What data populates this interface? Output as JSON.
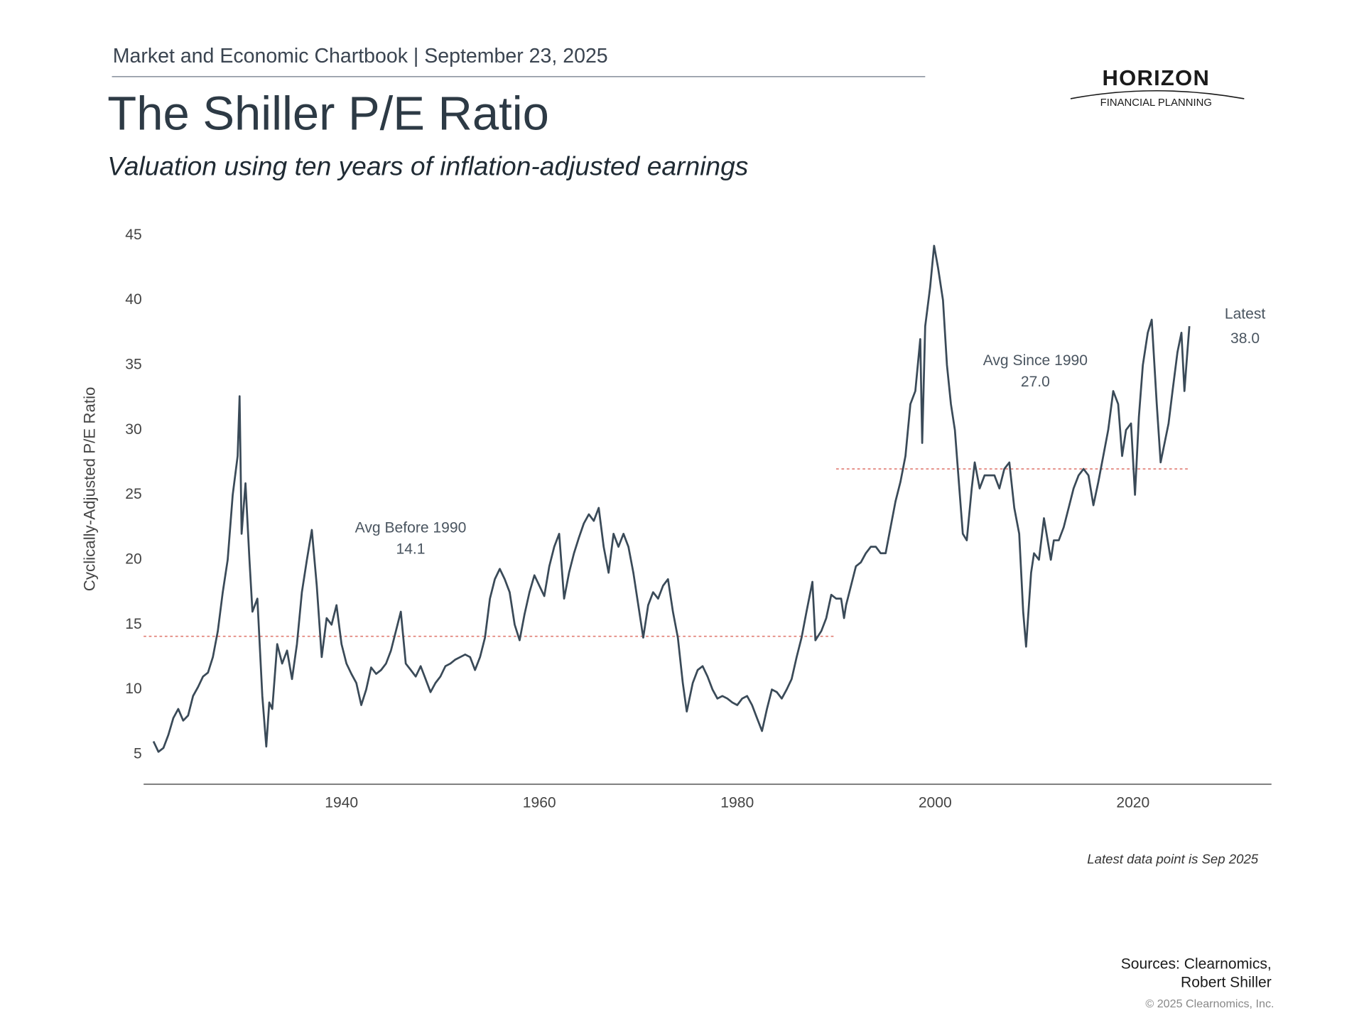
{
  "header": "Market and Economic Chartbook | September 23, 2025",
  "logo": {
    "name": "HORIZON",
    "tagline": "FINANCIAL PLANNING"
  },
  "chart_data": {
    "type": "line",
    "title": "The Shiller P/E Ratio",
    "subtitle": "Valuation using ten years of inflation-adjusted earnings",
    "y_label": "Cyclically-Adjusted P/E Ratio",
    "xlim": [
      1920,
      2034
    ],
    "ylim": [
      2.7,
      45
    ],
    "xticks": [
      1940,
      1960,
      1980,
      2000,
      2020
    ],
    "yticks": [
      5,
      10,
      15,
      20,
      25,
      30,
      35,
      40,
      45
    ],
    "grid": false,
    "series": [
      {
        "name": "Shiller P/E",
        "color": "#3a4a58",
        "x": [
          1921.0,
          1921.5,
          1922,
          1922.5,
          1923,
          1923.5,
          1924,
          1924.5,
          1925,
          1925.5,
          1926,
          1926.5,
          1927,
          1927.5,
          1928,
          1928.5,
          1929,
          1929.5,
          1929.7,
          1929.9,
          1930.3,
          1930.7,
          1931,
          1931.5,
          1932,
          1932.4,
          1932.7,
          1933,
          1933.5,
          1934,
          1934.5,
          1935,
          1935.5,
          1936,
          1936.5,
          1937,
          1937.5,
          1938,
          1938.5,
          1939,
          1939.5,
          1940,
          1940.5,
          1941,
          1941.5,
          1942,
          1942.5,
          1943,
          1943.5,
          1944,
          1944.5,
          1945,
          1945.5,
          1946,
          1946.5,
          1947,
          1947.5,
          1948,
          1948.5,
          1949,
          1949.5,
          1950,
          1950.5,
          1951,
          1951.5,
          1952,
          1952.5,
          1953,
          1953.5,
          1954,
          1954.5,
          1955,
          1955.5,
          1956,
          1956.5,
          1957,
          1957.5,
          1958,
          1958.5,
          1959,
          1959.5,
          1960,
          1960.5,
          1961,
          1961.5,
          1962,
          1962.5,
          1963,
          1963.5,
          1964,
          1964.5,
          1965,
          1965.5,
          1966,
          1966.5,
          1967,
          1967.5,
          1968,
          1968.5,
          1969,
          1969.5,
          1970,
          1970.5,
          1971,
          1971.5,
          1972,
          1972.5,
          1973,
          1973.5,
          1974,
          1974.5,
          1974.9,
          1975.5,
          1976,
          1976.5,
          1977,
          1977.5,
          1978,
          1978.5,
          1979,
          1979.5,
          1980,
          1980.5,
          1981,
          1981.5,
          1982,
          1982.5,
          1983,
          1983.5,
          1984,
          1984.5,
          1985,
          1985.5,
          1986,
          1986.5,
          1987,
          1987.6,
          1987.9,
          1988.5,
          1989,
          1989.5,
          1990,
          1990.5,
          1990.8,
          1991,
          1991.5,
          1992,
          1992.5,
          1993,
          1993.5,
          1994,
          1994.5,
          1995,
          1995.5,
          1996,
          1996.5,
          1997,
          1997.5,
          1998,
          1998.5,
          1998.7,
          1999,
          1999.5,
          1999.9,
          2000.3,
          2000.8,
          2001.2,
          2001.6,
          2002,
          2002.5,
          2002.8,
          2003.2,
          2003.7,
          2004,
          2004.5,
          2005,
          2005.5,
          2006,
          2006.5,
          2007,
          2007.5,
          2008,
          2008.5,
          2008.9,
          2009.2,
          2009.7,
          2010,
          2010.5,
          2011,
          2011.7,
          2012,
          2012.5,
          2013,
          2013.5,
          2014,
          2014.5,
          2015,
          2015.5,
          2016,
          2016.5,
          2017,
          2017.5,
          2018,
          2018.5,
          2018.9,
          2019.3,
          2019.8,
          2020.2,
          2020.6,
          2021,
          2021.5,
          2021.9,
          2022.4,
          2022.8,
          2023.2,
          2023.6,
          2024,
          2024.5,
          2024.9,
          2025.2,
          2025.4,
          2025.7
        ],
        "values": [
          6.0,
          5.2,
          5.5,
          6.5,
          7.8,
          8.5,
          7.6,
          8.0,
          9.5,
          10.2,
          11.0,
          11.3,
          12.5,
          14.5,
          17.5,
          20.0,
          25.0,
          28,
          32.6,
          22,
          25.9,
          20,
          16,
          17,
          9.5,
          5.6,
          9.0,
          8.5,
          13.5,
          12,
          13,
          10.8,
          13.5,
          17.5,
          20,
          22.3,
          18,
          12.5,
          15.5,
          15,
          16.5,
          13.5,
          12,
          11.2,
          10.5,
          8.8,
          10,
          11.7,
          11.2,
          11.5,
          12,
          13,
          14.5,
          16,
          12,
          11.5,
          11,
          11.8,
          10.8,
          9.8,
          10.5,
          11,
          11.8,
          12,
          12.3,
          12.5,
          12.7,
          12.5,
          11.5,
          12.5,
          14,
          17,
          18.5,
          19.3,
          18.5,
          17.5,
          15.0,
          13.8,
          15.8,
          17.5,
          18.8,
          18,
          17.2,
          19.5,
          21,
          22,
          17,
          19,
          20.5,
          21.7,
          22.8,
          23.5,
          23,
          24,
          21,
          19,
          22,
          21,
          22,
          21,
          19,
          16.5,
          14,
          16.5,
          17.5,
          17,
          18,
          18.5,
          16,
          14,
          10.5,
          8.3,
          10.5,
          11.5,
          11.8,
          11,
          10,
          9.3,
          9.5,
          9.3,
          9.0,
          8.8,
          9.3,
          9.5,
          8.8,
          7.8,
          6.8,
          8.5,
          10,
          9.8,
          9.3,
          10,
          10.8,
          12.5,
          14,
          16,
          18.3,
          13.8,
          14.5,
          15.5,
          17.3,
          17,
          17,
          15.5,
          16.5,
          18,
          19.5,
          19.8,
          20.5,
          21,
          21,
          20.5,
          20.5,
          22.5,
          24.5,
          26,
          28,
          32,
          33,
          37,
          29,
          38,
          41,
          44.2,
          42.5,
          40,
          35,
          32,
          30,
          25,
          22,
          21.5,
          25.5,
          27.5,
          25.5,
          26.5,
          26.5,
          26.5,
          25.5,
          27,
          27.5,
          24,
          22,
          16,
          13.3,
          19,
          20.5,
          20,
          23.2,
          20,
          21.5,
          21.5,
          22.5,
          24,
          25.5,
          26.5,
          27,
          26.5,
          24.2,
          26,
          28,
          30,
          33,
          32,
          28,
          30,
          30.5,
          25,
          31,
          35,
          37.5,
          38.5,
          32,
          27.5,
          29,
          30.5,
          33,
          36,
          37.5,
          33,
          35,
          38.0
        ]
      }
    ],
    "references": [
      {
        "label": "Avg Before 1990",
        "value": 14.1,
        "x": [
          1920,
          1990
        ],
        "color": "#e07b72"
      },
      {
        "label": "Avg Since 1990",
        "value": 27.0,
        "value_label": "27.0",
        "x": [
          1990,
          2025.7
        ],
        "color": "#e07b72"
      }
    ],
    "latest": {
      "label": "Latest",
      "value": 38.0,
      "value_label": "38.0"
    },
    "note": "Latest data point is Sep 2025"
  },
  "sources": [
    "Sources: Clearnomics,",
    "Robert Shiller"
  ],
  "copyright": "© 2025 Clearnomics, Inc."
}
